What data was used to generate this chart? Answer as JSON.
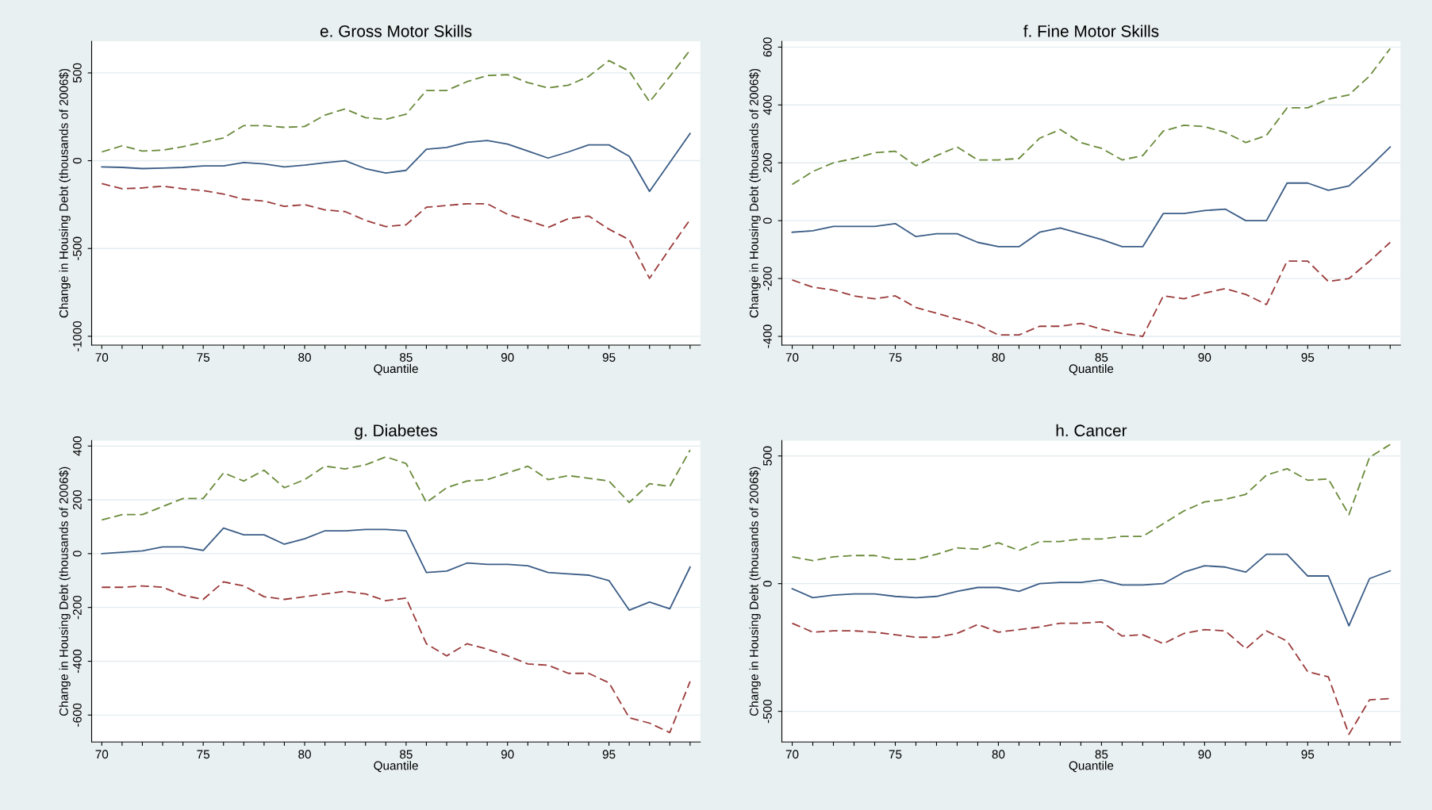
{
  "chart_data": [
    {
      "type": "line",
      "title": "e. Gross Motor Skills",
      "xlabel": "Quantile",
      "ylabel": "Change in Housing Debt (thousands of 2006$)",
      "grid": "y",
      "xlim": [
        69.5,
        99.5
      ],
      "ylim": [
        -1050,
        680
      ],
      "yticks": [
        -1000,
        -500,
        0,
        500
      ],
      "xticks": [
        70,
        {
          "value": 71,
          "label": null
        },
        {
          "value": 72,
          "label": null
        },
        {
          "value": 73,
          "label": null
        },
        {
          "value": 74,
          "label": null
        },
        75,
        {
          "value": 76,
          "label": null
        },
        {
          "value": 77,
          "label": null
        },
        {
          "value": 78,
          "label": null
        },
        {
          "value": 79,
          "label": null
        },
        80,
        {
          "value": 81,
          "label": null
        },
        {
          "value": 82,
          "label": null
        },
        {
          "value": 83,
          "label": null
        },
        {
          "value": 84,
          "label": null
        },
        85,
        {
          "value": 86,
          "label": null
        },
        {
          "value": 87,
          "label": null
        },
        {
          "value": 88,
          "label": null
        },
        {
          "value": 89,
          "label": null
        },
        90,
        {
          "value": 91,
          "label": null
        },
        {
          "value": 92,
          "label": null
        },
        {
          "value": 93,
          "label": null
        },
        {
          "value": 94,
          "label": null
        },
        95,
        {
          "value": 96,
          "label": null
        },
        {
          "value": 97,
          "label": null
        },
        {
          "value": 98,
          "label": null
        },
        {
          "value": 99,
          "label": null
        }
      ],
      "x": [
        70,
        71,
        72,
        73,
        74,
        75,
        76,
        77,
        78,
        79,
        80,
        81,
        82,
        83,
        84,
        85,
        86,
        87,
        88,
        89,
        90,
        91,
        92,
        93,
        94,
        95,
        96,
        97,
        98,
        99
      ],
      "series": [
        {
          "color": "#3b5d86",
          "line_style": "solid",
          "values": [
            -35,
            -38,
            -45,
            -42,
            -38,
            -30,
            -30,
            -10,
            -18,
            -35,
            -25,
            -12,
            0,
            -45,
            -70,
            -55,
            65,
            75,
            105,
            115,
            95,
            55,
            15,
            50,
            90,
            90,
            25,
            -175,
            -10,
            155
          ]
        },
        {
          "color": "#6a8a3a",
          "line_style": "dashed",
          "values": [
            50,
            85,
            55,
            60,
            80,
            105,
            130,
            200,
            200,
            190,
            195,
            260,
            295,
            245,
            235,
            265,
            400,
            400,
            450,
            485,
            490,
            445,
            415,
            430,
            480,
            570,
            510,
            335,
            480,
            630
          ]
        },
        {
          "color": "#9b3b3b",
          "line_style": "dashed",
          "values": [
            -130,
            -160,
            -155,
            -145,
            -160,
            -170,
            -190,
            -220,
            -230,
            -260,
            -250,
            -280,
            -290,
            -340,
            -375,
            -365,
            -265,
            -255,
            -245,
            -245,
            -305,
            -340,
            -380,
            -330,
            -315,
            -390,
            -450,
            -670,
            -500,
            -335
          ]
        }
      ]
    },
    {
      "type": "line",
      "title": "f. Fine Motor Skills",
      "xlabel": "Quantile",
      "ylabel": "Change in Housing Debt (thousands of 2006$)",
      "grid": "y",
      "xlim": [
        69.5,
        99.5
      ],
      "ylim": [
        -430,
        620
      ],
      "yticks": [
        -400,
        -200,
        0,
        200,
        400,
        600
      ],
      "xticks": [
        70,
        {
          "value": 71,
          "label": null
        },
        {
          "value": 72,
          "label": null
        },
        {
          "value": 73,
          "label": null
        },
        {
          "value": 74,
          "label": null
        },
        75,
        {
          "value": 76,
          "label": null
        },
        {
          "value": 77,
          "label": null
        },
        {
          "value": 78,
          "label": null
        },
        {
          "value": 79,
          "label": null
        },
        80,
        {
          "value": 81,
          "label": null
        },
        {
          "value": 82,
          "label": null
        },
        {
          "value": 83,
          "label": null
        },
        {
          "value": 84,
          "label": null
        },
        85,
        {
          "value": 86,
          "label": null
        },
        {
          "value": 87,
          "label": null
        },
        {
          "value": 88,
          "label": null
        },
        {
          "value": 89,
          "label": null
        },
        90,
        {
          "value": 91,
          "label": null
        },
        {
          "value": 92,
          "label": null
        },
        {
          "value": 93,
          "label": null
        },
        {
          "value": 94,
          "label": null
        },
        95,
        {
          "value": 96,
          "label": null
        },
        {
          "value": 97,
          "label": null
        },
        {
          "value": 98,
          "label": null
        },
        {
          "value": 99,
          "label": null
        }
      ],
      "x": [
        70,
        71,
        72,
        73,
        74,
        75,
        76,
        77,
        78,
        79,
        80,
        81,
        82,
        83,
        84,
        85,
        86,
        87,
        88,
        89,
        90,
        91,
        92,
        93,
        94,
        95,
        96,
        97,
        98,
        99
      ],
      "series": [
        {
          "color": "#3b5d86",
          "line_style": "solid",
          "values": [
            -40,
            -35,
            -20,
            -20,
            -20,
            -10,
            -55,
            -45,
            -45,
            -75,
            -90,
            -90,
            -40,
            -25,
            -45,
            -65,
            -90,
            -90,
            25,
            25,
            35,
            40,
            0,
            0,
            130,
            130,
            105,
            120,
            185,
            255
          ]
        },
        {
          "color": "#6a8a3a",
          "line_style": "dashed",
          "values": [
            125,
            170,
            200,
            215,
            235,
            240,
            190,
            225,
            255,
            210,
            210,
            215,
            285,
            315,
            270,
            250,
            210,
            225,
            310,
            330,
            325,
            305,
            270,
            295,
            390,
            390,
            420,
            435,
            500,
            595
          ]
        },
        {
          "color": "#9b3b3b",
          "line_style": "dashed",
          "values": [
            -205,
            -230,
            -240,
            -260,
            -270,
            -260,
            -300,
            -320,
            -340,
            -360,
            -395,
            -395,
            -365,
            -365,
            -355,
            -375,
            -390,
            -400,
            -260,
            -270,
            -250,
            -235,
            -255,
            -290,
            -140,
            -140,
            -210,
            -200,
            -140,
            -75
          ]
        }
      ]
    },
    {
      "type": "line",
      "title": "g. Diabetes",
      "xlabel": "Quantile",
      "ylabel": "Change in Housing Debt (thousands of 2006$)",
      "grid": "y",
      "xlim": [
        69.5,
        99.5
      ],
      "ylim": [
        -700,
        420
      ],
      "yticks": [
        -600,
        -400,
        -200,
        0,
        200,
        400
      ],
      "xticks": [
        70,
        {
          "value": 71,
          "label": null
        },
        {
          "value": 72,
          "label": null
        },
        {
          "value": 73,
          "label": null
        },
        {
          "value": 74,
          "label": null
        },
        75,
        {
          "value": 76,
          "label": null
        },
        {
          "value": 77,
          "label": null
        },
        {
          "value": 78,
          "label": null
        },
        {
          "value": 79,
          "label": null
        },
        80,
        {
          "value": 81,
          "label": null
        },
        {
          "value": 82,
          "label": null
        },
        {
          "value": 83,
          "label": null
        },
        {
          "value": 84,
          "label": null
        },
        85,
        {
          "value": 86,
          "label": null
        },
        {
          "value": 87,
          "label": null
        },
        {
          "value": 88,
          "label": null
        },
        {
          "value": 89,
          "label": null
        },
        90,
        {
          "value": 91,
          "label": null
        },
        {
          "value": 92,
          "label": null
        },
        {
          "value": 93,
          "label": null
        },
        {
          "value": 94,
          "label": null
        },
        95,
        {
          "value": 96,
          "label": null
        },
        {
          "value": 97,
          "label": null
        },
        {
          "value": 98,
          "label": null
        },
        {
          "value": 99,
          "label": null
        }
      ],
      "x": [
        70,
        71,
        72,
        73,
        74,
        75,
        76,
        77,
        78,
        79,
        80,
        81,
        82,
        83,
        84,
        85,
        86,
        87,
        88,
        89,
        90,
        91,
        92,
        93,
        94,
        95,
        96,
        97,
        98,
        99
      ],
      "series": [
        {
          "color": "#3b5d86",
          "line_style": "solid",
          "values": [
            0,
            5,
            10,
            25,
            25,
            12,
            95,
            70,
            70,
            35,
            55,
            85,
            85,
            90,
            90,
            85,
            -70,
            -65,
            -35,
            -40,
            -40,
            -45,
            -70,
            -75,
            -80,
            -100,
            -210,
            -180,
            -205,
            -50
          ]
        },
        {
          "color": "#6a8a3a",
          "line_style": "dashed",
          "values": [
            125,
            145,
            145,
            175,
            205,
            205,
            300,
            270,
            310,
            245,
            275,
            325,
            315,
            330,
            360,
            335,
            190,
            245,
            270,
            275,
            300,
            325,
            275,
            290,
            280,
            270,
            190,
            260,
            250,
            385
          ]
        },
        {
          "color": "#9b3b3b",
          "line_style": "dashed",
          "values": [
            -125,
            -125,
            -120,
            -125,
            -155,
            -170,
            -105,
            -120,
            -160,
            -170,
            -160,
            -150,
            -140,
            -150,
            -175,
            -165,
            -335,
            -380,
            -335,
            -355,
            -380,
            -410,
            -415,
            -445,
            -445,
            -480,
            -610,
            -630,
            -665,
            -475
          ]
        }
      ]
    },
    {
      "type": "line",
      "title": "h. Cancer",
      "xlabel": "Quantile",
      "ylabel": "Change in Housing Debt (thousands of 2006$)",
      "grid": "y",
      "xlim": [
        69.5,
        99.5
      ],
      "ylim": [
        -620,
        560
      ],
      "yticks": [
        -500,
        0,
        500
      ],
      "xticks": [
        70,
        {
          "value": 71,
          "label": null
        },
        {
          "value": 72,
          "label": null
        },
        {
          "value": 73,
          "label": null
        },
        {
          "value": 74,
          "label": null
        },
        75,
        {
          "value": 76,
          "label": null
        },
        {
          "value": 77,
          "label": null
        },
        {
          "value": 78,
          "label": null
        },
        {
          "value": 79,
          "label": null
        },
        80,
        {
          "value": 81,
          "label": null
        },
        {
          "value": 82,
          "label": null
        },
        {
          "value": 83,
          "label": null
        },
        {
          "value": 84,
          "label": null
        },
        85,
        {
          "value": 86,
          "label": null
        },
        {
          "value": 87,
          "label": null
        },
        {
          "value": 88,
          "label": null
        },
        {
          "value": 89,
          "label": null
        },
        90,
        {
          "value": 91,
          "label": null
        },
        {
          "value": 92,
          "label": null
        },
        {
          "value": 93,
          "label": null
        },
        {
          "value": 94,
          "label": null
        },
        95,
        {
          "value": 96,
          "label": null
        },
        {
          "value": 97,
          "label": null
        },
        {
          "value": 98,
          "label": null
        },
        {
          "value": 99,
          "label": null
        }
      ],
      "x": [
        70,
        71,
        72,
        73,
        74,
        75,
        76,
        77,
        78,
        79,
        80,
        81,
        82,
        83,
        84,
        85,
        86,
        87,
        88,
        89,
        90,
        91,
        92,
        93,
        94,
        95,
        96,
        97,
        98,
        99
      ],
      "series": [
        {
          "color": "#3b5d86",
          "line_style": "solid",
          "values": [
            -20,
            -55,
            -45,
            -40,
            -40,
            -50,
            -55,
            -50,
            -30,
            -15,
            -15,
            -30,
            0,
            5,
            5,
            15,
            -5,
            -5,
            0,
            45,
            70,
            65,
            45,
            115,
            115,
            30,
            30,
            -165,
            20,
            50
          ]
        },
        {
          "color": "#6a8a3a",
          "line_style": "dashed",
          "values": [
            105,
            90,
            105,
            110,
            110,
            95,
            95,
            115,
            140,
            135,
            160,
            130,
            165,
            165,
            175,
            175,
            185,
            185,
            235,
            285,
            320,
            330,
            350,
            425,
            450,
            405,
            410,
            270,
            495,
            545
          ]
        },
        {
          "color": "#9b3b3b",
          "line_style": "dashed",
          "values": [
            -155,
            -190,
            -185,
            -185,
            -190,
            -200,
            -210,
            -210,
            -195,
            -160,
            -190,
            -180,
            -170,
            -155,
            -155,
            -150,
            -205,
            -200,
            -235,
            -195,
            -180,
            -185,
            -255,
            -185,
            -225,
            -345,
            -365,
            -590,
            -455,
            -450
          ]
        }
      ]
    }
  ]
}
